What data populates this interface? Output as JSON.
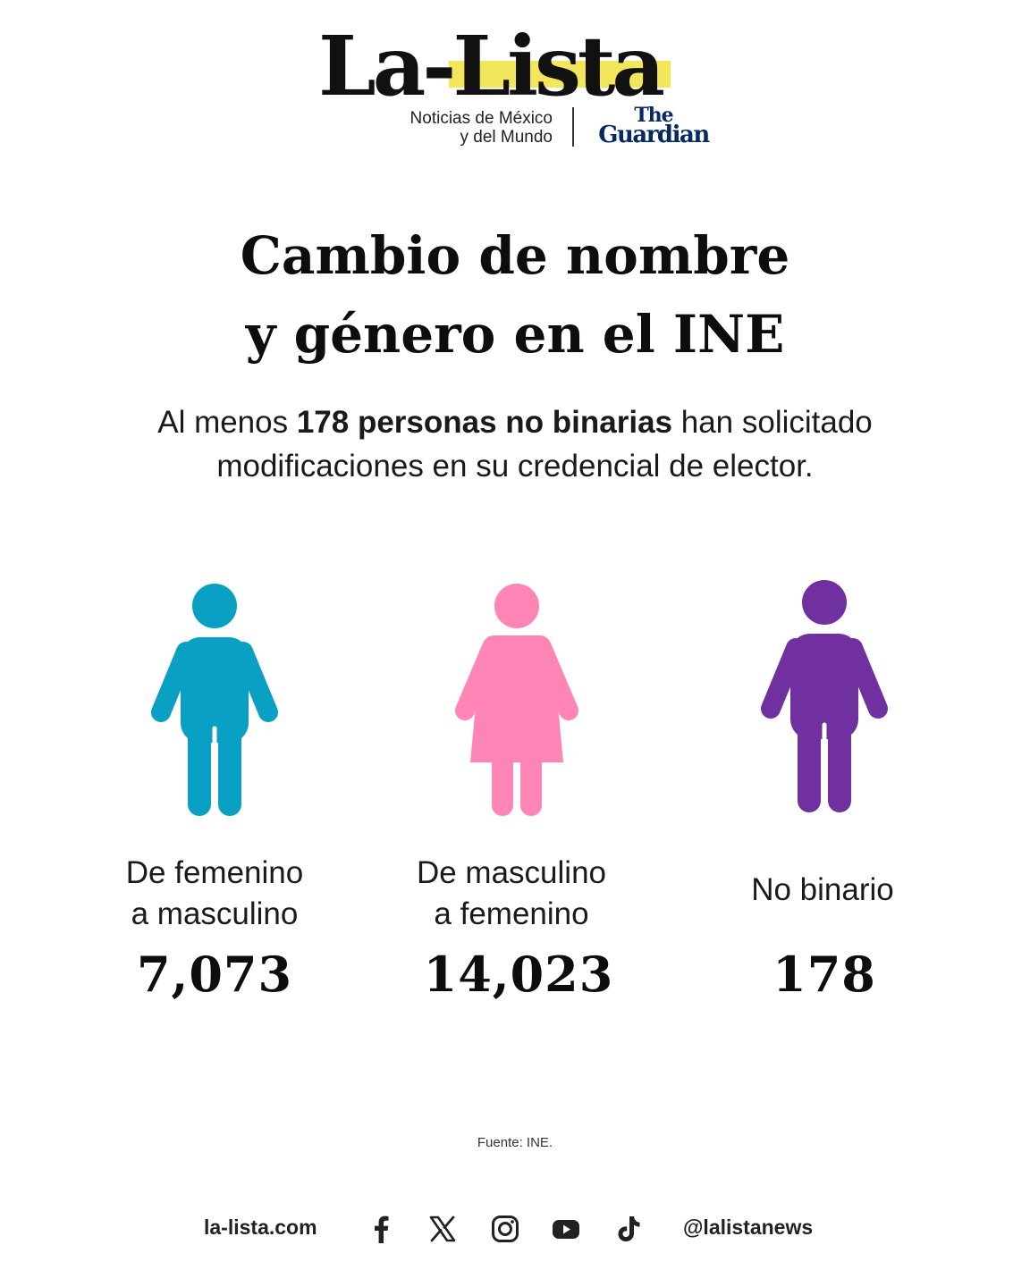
{
  "masthead": {
    "brand_prefix": "La-",
    "brand_highlight": "Lista",
    "tagline_line1": "Noticias de México",
    "tagline_line2": "y del Mundo",
    "partner_line1": "The",
    "partner_line2": "Guardian",
    "highlight_color": "#f2e65a",
    "partner_color": "#052962"
  },
  "headline": {
    "line1": "Cambio de nombre",
    "line2": "y género en el INE"
  },
  "subtitle": {
    "before": "Al menos ",
    "bold": "178 personas no binarias",
    "after": " han solicitado modificaciones en su credencial de elector."
  },
  "stats": [
    {
      "label_line1": "De femenino",
      "label_line2": "a masculino",
      "value": "7,073",
      "icon": "male-person-icon",
      "color": "#0aa0c4"
    },
    {
      "label_line1": "De masculino",
      "label_line2": "a femenino",
      "value": "14,023",
      "icon": "female-person-icon",
      "color": "#ff85b6"
    },
    {
      "label_line1": "No binario",
      "label_line2": "",
      "value": "178",
      "icon": "nonbinary-person-icon",
      "color": "#7030a0"
    }
  ],
  "source": "Fuente: INE.",
  "footer": {
    "site": "la-lista.com",
    "handle": "@lalistanews",
    "social_icons": [
      "facebook-icon",
      "x-icon",
      "instagram-icon",
      "youtube-icon",
      "tiktok-icon"
    ]
  }
}
